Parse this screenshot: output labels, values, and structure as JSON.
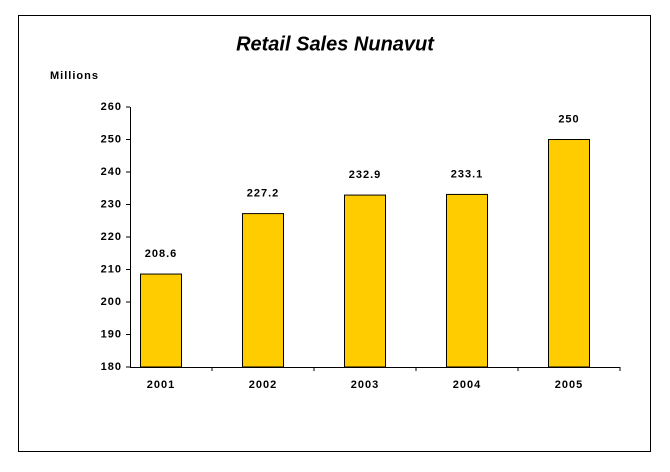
{
  "chart_data": {
    "type": "bar",
    "title": "Retail Sales Nunavut",
    "y_label": "Millions",
    "categories": [
      "2001",
      "2002",
      "2003",
      "2004",
      "2005"
    ],
    "values": [
      208.6,
      227.2,
      232.9,
      233.1,
      250
    ],
    "color": "#ffcc00",
    "ylim": [
      180,
      260
    ],
    "yticks": [
      180,
      190,
      200,
      210,
      220,
      230,
      240,
      250,
      260
    ],
    "grid": false,
    "value_labels_shown": true
  }
}
